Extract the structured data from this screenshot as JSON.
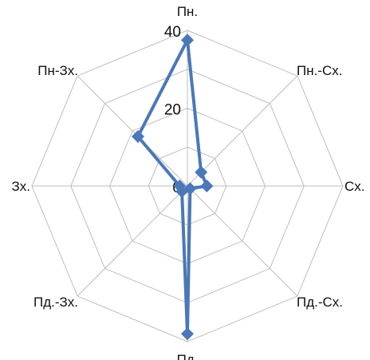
{
  "chart_data": {
    "type": "radar",
    "title": "",
    "categories": [
      "Пн.",
      "Пн.-Сх.",
      "Сх.",
      "Пд.-Сх.",
      "Пд.",
      "Пд.-Зх.",
      "Зх.",
      "Пн-Зх."
    ],
    "series": [
      {
        "values": [
          37.5,
          5,
          5,
          1,
          38,
          2,
          2,
          18
        ]
      }
    ],
    "rmax": 40,
    "ticks": [
      "0",
      "20",
      "40"
    ],
    "tick_values": [
      0,
      20,
      40
    ],
    "grid_levels": [
      10,
      20,
      30,
      40
    ],
    "grid": true,
    "legend": "none",
    "series_color": "#4a78b8",
    "grid_color": "#bdbdbd"
  }
}
